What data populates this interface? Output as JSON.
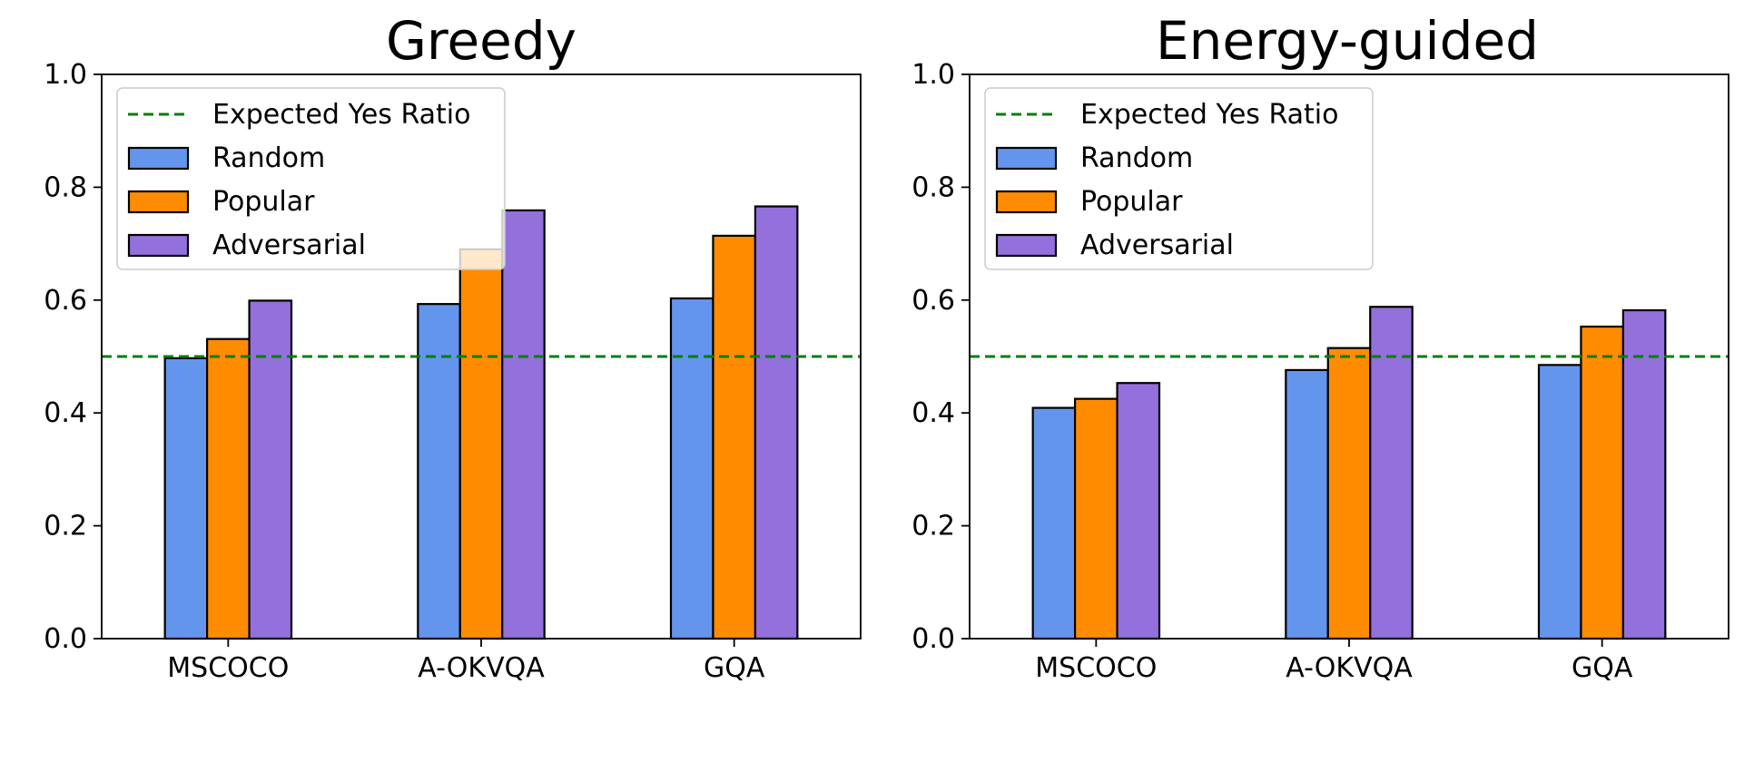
{
  "figure": {
    "legend_labels": {
      "line": "Expected Yes Ratio",
      "random": "Random",
      "popular": "Popular",
      "adversarial": "Adversarial"
    },
    "colors": {
      "random": "#6495ED",
      "popular": "#FF8C00",
      "adversarial": "#9370DB",
      "expected_line": "#008000"
    }
  },
  "chart_data": [
    {
      "type": "bar",
      "title": "Greedy",
      "categories": [
        "MSCOCO",
        "A-OKVQA",
        "GQA"
      ],
      "series": [
        {
          "name": "Random",
          "values": [
            0.497,
            0.593,
            0.603
          ]
        },
        {
          "name": "Popular",
          "values": [
            0.531,
            0.69,
            0.714
          ]
        },
        {
          "name": "Adversarial",
          "values": [
            0.599,
            0.759,
            0.766
          ]
        }
      ],
      "reference_line": {
        "name": "Expected Yes Ratio",
        "value": 0.5,
        "style": "dashed"
      },
      "ylim": [
        0,
        1.0
      ],
      "yticks": [
        "0.0",
        "0.2",
        "0.4",
        "0.6",
        "0.8",
        "1.0"
      ],
      "xlabel": "",
      "ylabel": "",
      "legend": "top-left"
    },
    {
      "type": "bar",
      "title": "Energy-guided",
      "categories": [
        "MSCOCO",
        "A-OKVQA",
        "GQA"
      ],
      "series": [
        {
          "name": "Random",
          "values": [
            0.409,
            0.476,
            0.485
          ]
        },
        {
          "name": "Popular",
          "values": [
            0.425,
            0.515,
            0.553
          ]
        },
        {
          "name": "Adversarial",
          "values": [
            0.453,
            0.588,
            0.582
          ]
        }
      ],
      "reference_line": {
        "name": "Expected Yes Ratio",
        "value": 0.5,
        "style": "dashed"
      },
      "ylim": [
        0,
        1.0
      ],
      "yticks": [
        "0.0",
        "0.2",
        "0.4",
        "0.6",
        "0.8",
        "1.0"
      ],
      "xlabel": "",
      "ylabel": "",
      "legend": "top-left"
    }
  ]
}
